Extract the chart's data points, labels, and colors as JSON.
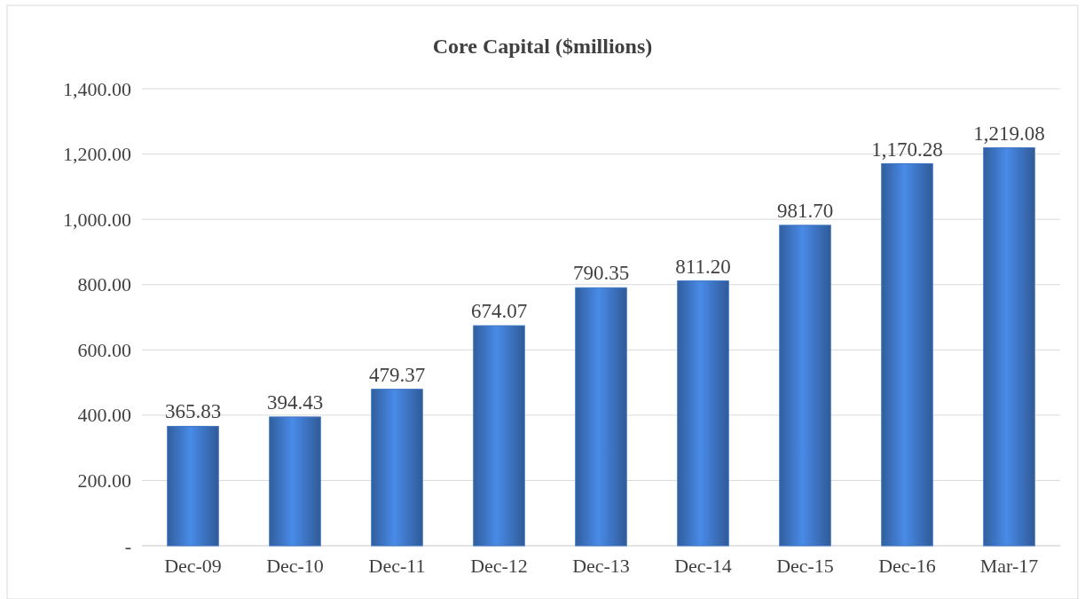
{
  "chart_data": {
    "type": "bar",
    "title": "Core Capital ($millions)",
    "categories": [
      "Dec-09",
      "Dec-10",
      "Dec-11",
      "Dec-12",
      "Dec-13",
      "Dec-14",
      "Dec-15",
      "Dec-16",
      "Mar-17"
    ],
    "values": [
      365.83,
      394.43,
      479.37,
      674.07,
      790.35,
      811.2,
      981.7,
      1170.28,
      1219.08
    ],
    "value_labels": [
      "365.83",
      "394.43",
      "479.37",
      "674.07",
      "790.35",
      "811.20",
      "981.70",
      "1,170.28",
      "1,219.08"
    ],
    "color": "#3d74c2",
    "ylim": [
      0,
      1400
    ],
    "yticks": [
      {
        "value": 0,
        "label": "-"
      },
      {
        "value": 200,
        "label": "200.00"
      },
      {
        "value": 400,
        "label": "400.00"
      },
      {
        "value": 600,
        "label": "600.00"
      },
      {
        "value": 800,
        "label": "800.00"
      },
      {
        "value": 1000,
        "label": "1,000.00"
      },
      {
        "value": 1200,
        "label": "1,200.00"
      },
      {
        "value": 1400,
        "label": "1,400.00"
      }
    ],
    "grid": "y"
  }
}
